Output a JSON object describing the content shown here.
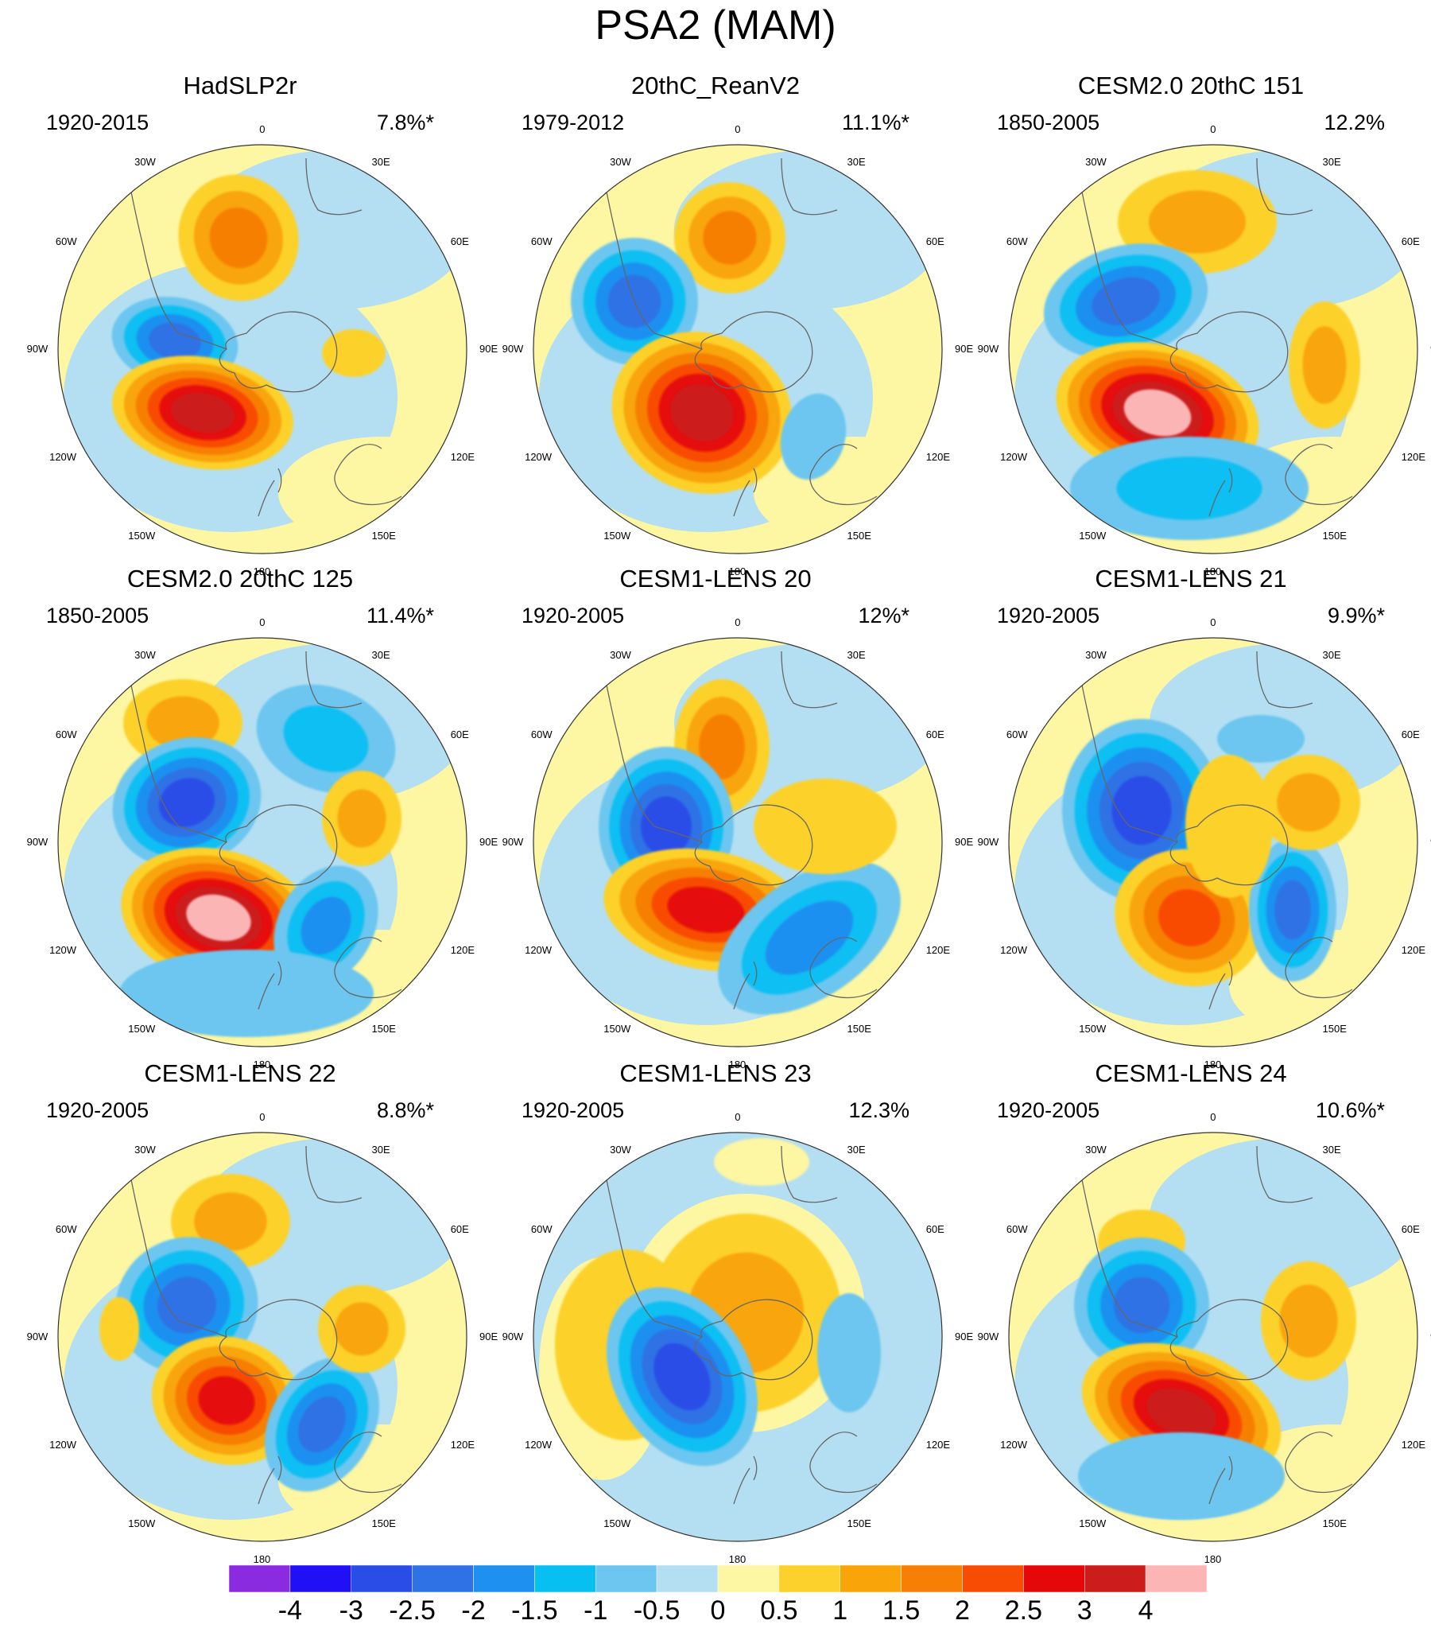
{
  "figure": {
    "title": "PSA2 (MAM)"
  },
  "longitude_labels": [
    "0",
    "30E",
    "60E",
    "90E",
    "120E",
    "150E",
    "180",
    "150W",
    "120W",
    "90W",
    "60W",
    "30W"
  ],
  "panels": [
    {
      "title": "HadSLP2r",
      "period": "1920-2015",
      "variance": "7.8%*"
    },
    {
      "title": "20thC_ReanV2",
      "period": "1979-2012",
      "variance": "11.1%*"
    },
    {
      "title": "CESM2.0 20thC 151",
      "period": "1850-2005",
      "variance": "12.2%"
    },
    {
      "title": "CESM2.0 20thC 125",
      "period": "1850-2005",
      "variance": "11.4%*"
    },
    {
      "title": "CESM1-LENS 20",
      "period": "1920-2005",
      "variance": "12%*"
    },
    {
      "title": "CESM1-LENS 21",
      "period": "1920-2005",
      "variance": "9.9%*"
    },
    {
      "title": "CESM1-LENS 22",
      "period": "1920-2005",
      "variance": "8.8%*"
    },
    {
      "title": "CESM1-LENS 23",
      "period": "1920-2005",
      "variance": "12.3%"
    },
    {
      "title": "CESM1-LENS 24",
      "period": "1920-2005",
      "variance": "10.6%*"
    }
  ],
  "colorbar": {
    "labels": [
      "-4",
      "-3",
      "-2.5",
      "-2",
      "-1.5",
      "-1",
      "-0.5",
      "0",
      "0.5",
      "1",
      "1.5",
      "2",
      "2.5",
      "3",
      "4"
    ],
    "colors": [
      "#8a2be2",
      "#1f10f5",
      "#2a4de8",
      "#2f72e6",
      "#1e90f0",
      "#08bff2",
      "#6cc6ef",
      "#b4dff2",
      "#fdf6a2",
      "#fcd12b",
      "#f9a50a",
      "#f77f05",
      "#f84c05",
      "#e5080b",
      "#cc1c1c",
      "#fbb5b5"
    ]
  },
  "colors": {
    "land_outline": "#666666",
    "disk_border": "#333333"
  }
}
